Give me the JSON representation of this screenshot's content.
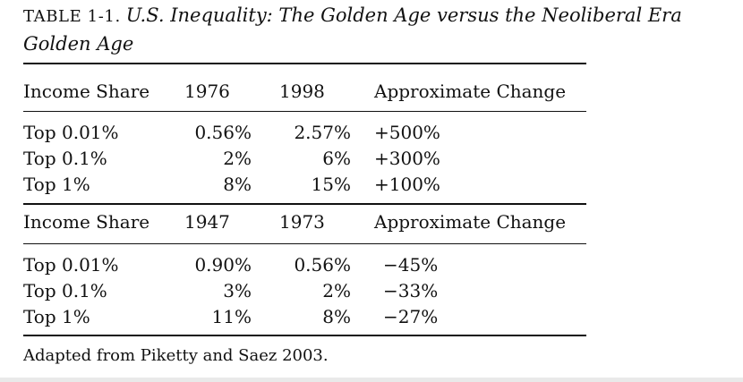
{
  "caption": {
    "label": "TABLE 1-1.",
    "title": "U.S. Inequality: The Golden Age versus the Neoliberal Era Golden Age"
  },
  "table": {
    "sections": [
      {
        "header": {
          "col_label": "Income Share",
          "col_year1": "1976",
          "col_year2": "1998",
          "col_change": "Approximate Change"
        },
        "rows": [
          {
            "label": "Top 0.01%",
            "year1": "0.56%",
            "year2": "2.57%",
            "change": "+500%"
          },
          {
            "label": "Top 0.1%",
            "year1": "2%",
            "year2": "6%",
            "change": "+300%"
          },
          {
            "label": "Top 1%",
            "year1": "8%",
            "year2": "15%",
            "change": "+100%"
          }
        ]
      },
      {
        "header": {
          "col_label": "Income Share",
          "col_year1": "1947",
          "col_year2": "1973",
          "col_change": "Approximate Change"
        },
        "rows": [
          {
            "label": "Top 0.01%",
            "year1": "0.90%",
            "year2": "0.56%",
            "change": "−45%"
          },
          {
            "label": "Top 0.1%",
            "year1": "3%",
            "year2": "2%",
            "change": "−33%"
          },
          {
            "label": "Top 1%",
            "year1": "11%",
            "year2": "8%",
            "change": "−27%"
          }
        ]
      }
    ]
  },
  "source": "Adapted from Piketty and Saez 2003."
}
